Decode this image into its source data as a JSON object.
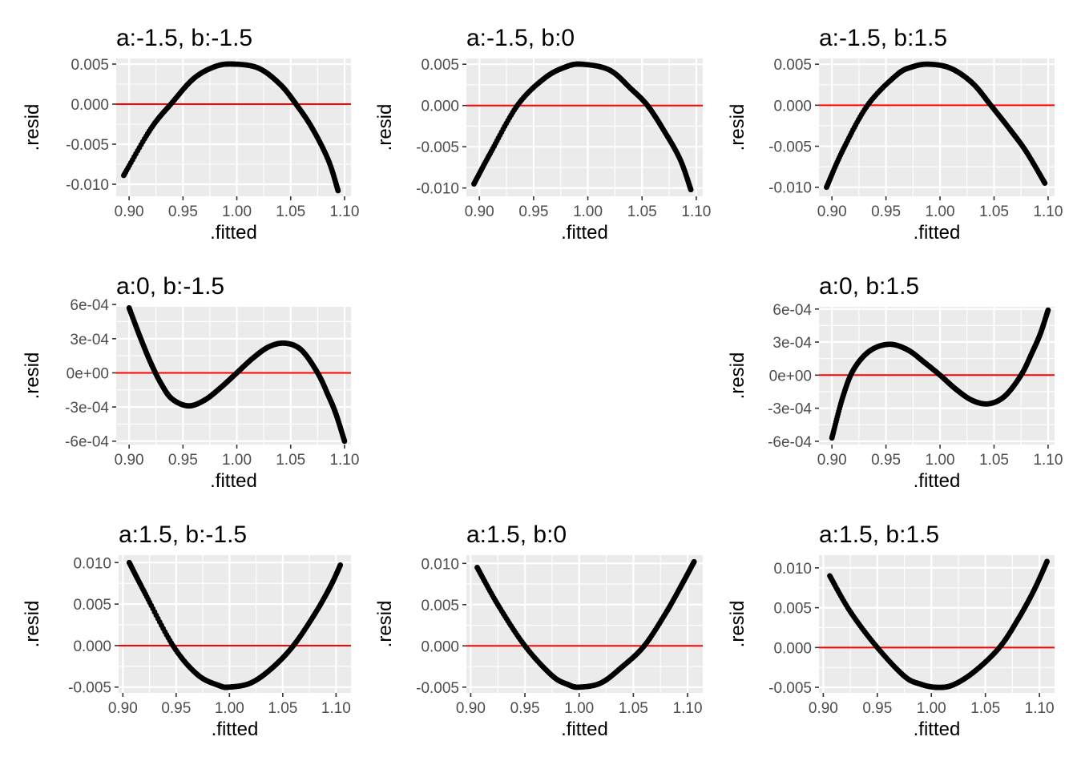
{
  "chart_data": [
    {
      "type": "scatter",
      "title": "a:-1.5, b:-1.5",
      "xlabel": ".fitted",
      "ylabel": ".resid",
      "xlim": [
        0.888,
        1.106
      ],
      "ylim": [
        -0.0115,
        0.0057
      ],
      "xticks": [
        0.9,
        0.95,
        1.0,
        1.05,
        1.1
      ],
      "xtick_labels": [
        "0.90",
        "0.95",
        "1.00",
        "1.05",
        "1.10"
      ],
      "yticks": [
        0.005,
        0.0,
        -0.005,
        -0.01
      ],
      "ytick_labels": [
        "0.005",
        "0.000",
        "-0.005",
        "-0.010"
      ],
      "reference_line_y": 0,
      "series": [
        {
          "x": [
            0.895,
            0.92,
            0.94,
            0.96,
            0.98,
            0.997,
            1.02,
            1.04,
            1.055,
            1.07,
            1.085,
            1.094
          ],
          "y": [
            -0.0089,
            -0.0031,
            0.0002,
            0.0032,
            0.0047,
            0.005,
            0.0045,
            0.0025,
            0.0,
            -0.003,
            -0.007,
            -0.0108
          ]
        }
      ]
    },
    {
      "type": "scatter",
      "title": "a:-1.5, b:0",
      "xlabel": ".fitted",
      "ylabel": ".resid",
      "xlim": [
        0.888,
        1.106
      ],
      "ylim": [
        -0.011,
        0.0057
      ],
      "xticks": [
        0.9,
        0.95,
        1.0,
        1.05,
        1.1
      ],
      "xtick_labels": [
        "0.90",
        "0.95",
        "1.00",
        "1.05",
        "1.10"
      ],
      "yticks": [
        0.005,
        0.0,
        -0.005,
        -0.01
      ],
      "ytick_labels": [
        "0.005",
        "0.000",
        "-0.005",
        "-0.010"
      ],
      "reference_line_y": 0,
      "series": [
        {
          "x": [
            0.895,
            0.91,
            0.935,
            0.96,
            0.98,
            0.995,
            1.02,
            1.04,
            1.055,
            1.07,
            1.085,
            1.095
          ],
          "y": [
            -0.0095,
            -0.0058,
            0.0,
            0.0033,
            0.0047,
            0.005,
            0.0043,
            0.002,
            0.0,
            -0.003,
            -0.0065,
            -0.0102
          ]
        }
      ]
    },
    {
      "type": "scatter",
      "title": "a:-1.5, b:1.5",
      "xlabel": ".fitted",
      "ylabel": ".resid",
      "xlim": [
        0.888,
        1.106
      ],
      "ylim": [
        -0.0111,
        0.0057
      ],
      "xticks": [
        0.9,
        0.95,
        1.0,
        1.05,
        1.1
      ],
      "xtick_labels": [
        "0.90",
        "0.95",
        "1.00",
        "1.05",
        "1.10"
      ],
      "yticks": [
        0.005,
        0.0,
        -0.005,
        -0.01
      ],
      "ytick_labels": [
        "0.005",
        "0.000",
        "-0.005",
        "-0.010"
      ],
      "reference_line_y": 0,
      "series": [
        {
          "x": [
            0.895,
            0.91,
            0.933,
            0.96,
            0.975,
            0.99,
            1.01,
            1.03,
            1.047,
            1.065,
            1.08,
            1.097
          ],
          "y": [
            -0.01,
            -0.0055,
            0.0,
            0.0037,
            0.0047,
            0.005,
            0.0045,
            0.0027,
            0.0,
            -0.003,
            -0.0057,
            -0.0095
          ]
        }
      ]
    },
    {
      "type": "scatter",
      "title": "a:0, b:-1.5",
      "xlabel": ".fitted",
      "ylabel": ".resid",
      "xlim": [
        0.888,
        1.106
      ],
      "ylim": [
        -0.00063,
        0.00058
      ],
      "xticks": [
        0.9,
        0.95,
        1.0,
        1.05,
        1.1
      ],
      "xtick_labels": [
        "0.90",
        "0.95",
        "1.00",
        "1.05",
        "1.10"
      ],
      "yticks": [
        0.0006,
        0.0003,
        0.0,
        -0.0003,
        -0.0006
      ],
      "ytick_labels": [
        "6e-04",
        "3e-04",
        "0e+00",
        "-3e-04",
        "-6e-04"
      ],
      "reference_line_y": 0,
      "series": [
        {
          "x": [
            0.9,
            0.91,
            0.92,
            0.93,
            0.94,
            0.955,
            0.97,
            0.985,
            1.0,
            1.015,
            1.03,
            1.045,
            1.06,
            1.075,
            1.085,
            1.092,
            1.1
          ],
          "y": [
            0.00057,
            0.00032,
            9e-05,
            -0.0001,
            -0.00023,
            -0.00029,
            -0.00024,
            -0.00013,
            0.0,
            0.00013,
            0.00023,
            0.00026,
            0.0002,
            0.0,
            -0.0002,
            -0.00036,
            -0.0006
          ]
        }
      ]
    },
    {
      "type": "scatter",
      "title": "a:0, b:1.5",
      "xlabel": ".fitted",
      "ylabel": ".resid",
      "xlim": [
        0.888,
        1.106
      ],
      "ylim": [
        -0.00063,
        0.00062
      ],
      "xticks": [
        0.9,
        0.95,
        1.0,
        1.05,
        1.1
      ],
      "xtick_labels": [
        "0.90",
        "0.95",
        "1.00",
        "1.05",
        "1.10"
      ],
      "yticks": [
        0.0006,
        0.0003,
        0.0,
        -0.0003,
        -0.0006
      ],
      "ytick_labels": [
        "6e-04",
        "3e-04",
        "0e+00",
        "-3e-04",
        "-6e-04"
      ],
      "reference_line_y": 0,
      "series": [
        {
          "x": [
            0.9,
            0.91,
            0.92,
            0.935,
            0.953,
            0.97,
            0.985,
            1.0,
            1.015,
            1.03,
            1.045,
            1.06,
            1.075,
            1.085,
            1.093,
            1.1
          ],
          "y": [
            -0.00057,
            -0.0002,
            5e-05,
            0.00022,
            0.00028,
            0.00023,
            0.00012,
            0.0,
            -0.00013,
            -0.00023,
            -0.00026,
            -0.00019,
            0.0,
            0.0002,
            0.00038,
            0.00059
          ]
        }
      ]
    },
    {
      "type": "scatter",
      "title": "a:1.5, b:-1.5",
      "xlabel": ".fitted",
      "ylabel": ".resid",
      "xlim": [
        0.896,
        1.114
      ],
      "ylim": [
        -0.0057,
        0.0109
      ],
      "xticks": [
        0.9,
        0.95,
        1.0,
        1.05,
        1.1
      ],
      "xtick_labels": [
        "0.90",
        "0.95",
        "1.00",
        "1.05",
        "1.10"
      ],
      "yticks": [
        0.01,
        0.005,
        0.0,
        -0.005
      ],
      "ytick_labels": [
        "0.010",
        "0.005",
        "0.000",
        "-0.005"
      ],
      "reference_line_y": 0,
      "series": [
        {
          "x": [
            0.906,
            0.92,
            0.947,
            0.97,
            0.99,
            1.0,
            1.02,
            1.04,
            1.06,
            1.08,
            1.095,
            1.104
          ],
          "y": [
            0.01,
            0.0065,
            0.0,
            -0.0035,
            -0.0048,
            -0.005,
            -0.0045,
            -0.0027,
            0.0,
            0.0038,
            0.0072,
            0.0097
          ]
        }
      ]
    },
    {
      "type": "scatter",
      "title": "a:1.5, b:0",
      "xlabel": ".fitted",
      "ylabel": ".resid",
      "xlim": [
        0.896,
        1.114
      ],
      "ylim": [
        -0.0057,
        0.011
      ],
      "xticks": [
        0.9,
        0.95,
        1.0,
        1.05,
        1.1
      ],
      "xtick_labels": [
        "0.90",
        "0.95",
        "1.00",
        "1.05",
        "1.10"
      ],
      "yticks": [
        0.01,
        0.005,
        0.0,
        -0.005
      ],
      "ytick_labels": [
        "0.010",
        "0.005",
        "0.000",
        "-0.005"
      ],
      "reference_line_y": 0,
      "series": [
        {
          "x": [
            0.906,
            0.925,
            0.95,
            0.975,
            0.99,
            1.0,
            1.02,
            1.04,
            1.06,
            1.08,
            1.095,
            1.106
          ],
          "y": [
            0.0095,
            0.005,
            0.0,
            -0.0036,
            -0.0047,
            -0.005,
            -0.0045,
            -0.0025,
            0.0,
            0.004,
            0.0075,
            0.0102
          ]
        }
      ]
    },
    {
      "type": "scatter",
      "title": "a:1.5, b:1.5",
      "xlabel": ".fitted",
      "ylabel": ".resid",
      "xlim": [
        0.896,
        1.114
      ],
      "ylim": [
        -0.0057,
        0.0116
      ],
      "xticks": [
        0.9,
        0.95,
        1.0,
        1.05,
        1.1
      ],
      "xtick_labels": [
        "0.90",
        "0.95",
        "1.00",
        "1.05",
        "1.10"
      ],
      "yticks": [
        0.01,
        0.005,
        0.0,
        -0.005
      ],
      "ytick_labels": [
        "0.010",
        "0.005",
        "0.000",
        "-0.005"
      ],
      "reference_line_y": 0,
      "series": [
        {
          "x": [
            0.906,
            0.925,
            0.95,
            0.975,
            0.99,
            1.005,
            1.02,
            1.04,
            1.063,
            1.08,
            1.095,
            1.107
          ],
          "y": [
            0.009,
            0.0045,
            0.0,
            -0.0036,
            -0.0046,
            -0.005,
            -0.0047,
            -0.003,
            0.0,
            0.0035,
            0.0072,
            0.0108
          ]
        }
      ]
    }
  ]
}
